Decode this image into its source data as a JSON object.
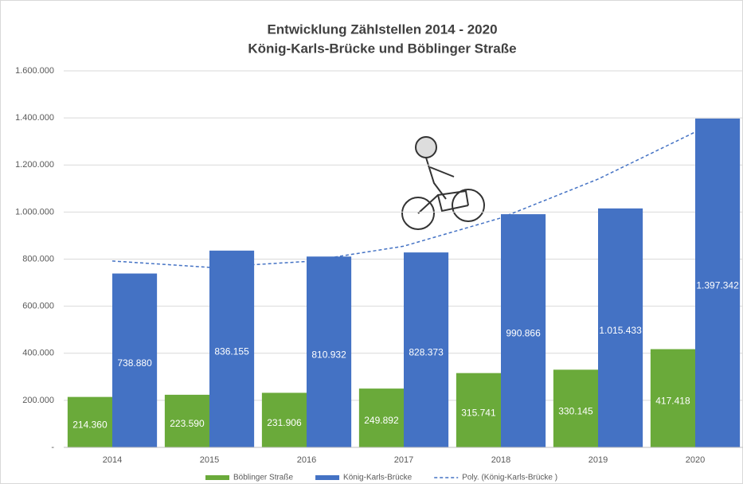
{
  "chart_data": {
    "type": "bar",
    "title": "Entwicklung Zählstellen 2014 - 2020",
    "subtitle": "König-Karls-Brücke und Böblinger Straße",
    "categories": [
      "2014",
      "2015",
      "2016",
      "2017",
      "2018",
      "2019",
      "2020"
    ],
    "series": [
      {
        "name": "Böblinger Straße",
        "color": "#6aaa3a",
        "values": [
          214360,
          223590,
          231906,
          249892,
          315741,
          330145,
          417418
        ],
        "value_labels": [
          "214.360",
          "223.590",
          "231.906",
          "249.892",
          "315.741",
          "330.145",
          "417.418"
        ]
      },
      {
        "name": "König-Karls-Brücke",
        "color": "#4472c4",
        "values": [
          738880,
          836155,
          810932,
          828373,
          990866,
          1015433,
          1397342
        ],
        "value_labels": [
          "738.880",
          "836.155",
          "810.932",
          "828.373",
          "990.866",
          "1.015.433",
          "1.397.342"
        ]
      },
      {
        "name": "Poly. (König-Karls-Brücke )",
        "color": "#4472c4",
        "type": "line",
        "dashed": true,
        "values": [
          792000,
          765000,
          790000,
          855000,
          975000,
          1140000,
          1340000
        ]
      }
    ],
    "ylim": [
      0,
      1600000
    ],
    "yticks": [
      {
        "value": 0,
        "label": "-"
      },
      {
        "value": 200000,
        "label": "200.000"
      },
      {
        "value": 400000,
        "label": "400.000"
      },
      {
        "value": 600000,
        "label": "600.000"
      },
      {
        "value": 800000,
        "label": "800.000"
      },
      {
        "value": 1000000,
        "label": "1.000.000"
      },
      {
        "value": 1200000,
        "label": "1.200.000"
      },
      {
        "value": 1400000,
        "label": "1.400.000"
      },
      {
        "value": 1600000,
        "label": "1.600.000"
      }
    ],
    "grid": true,
    "legend": "bottom"
  }
}
